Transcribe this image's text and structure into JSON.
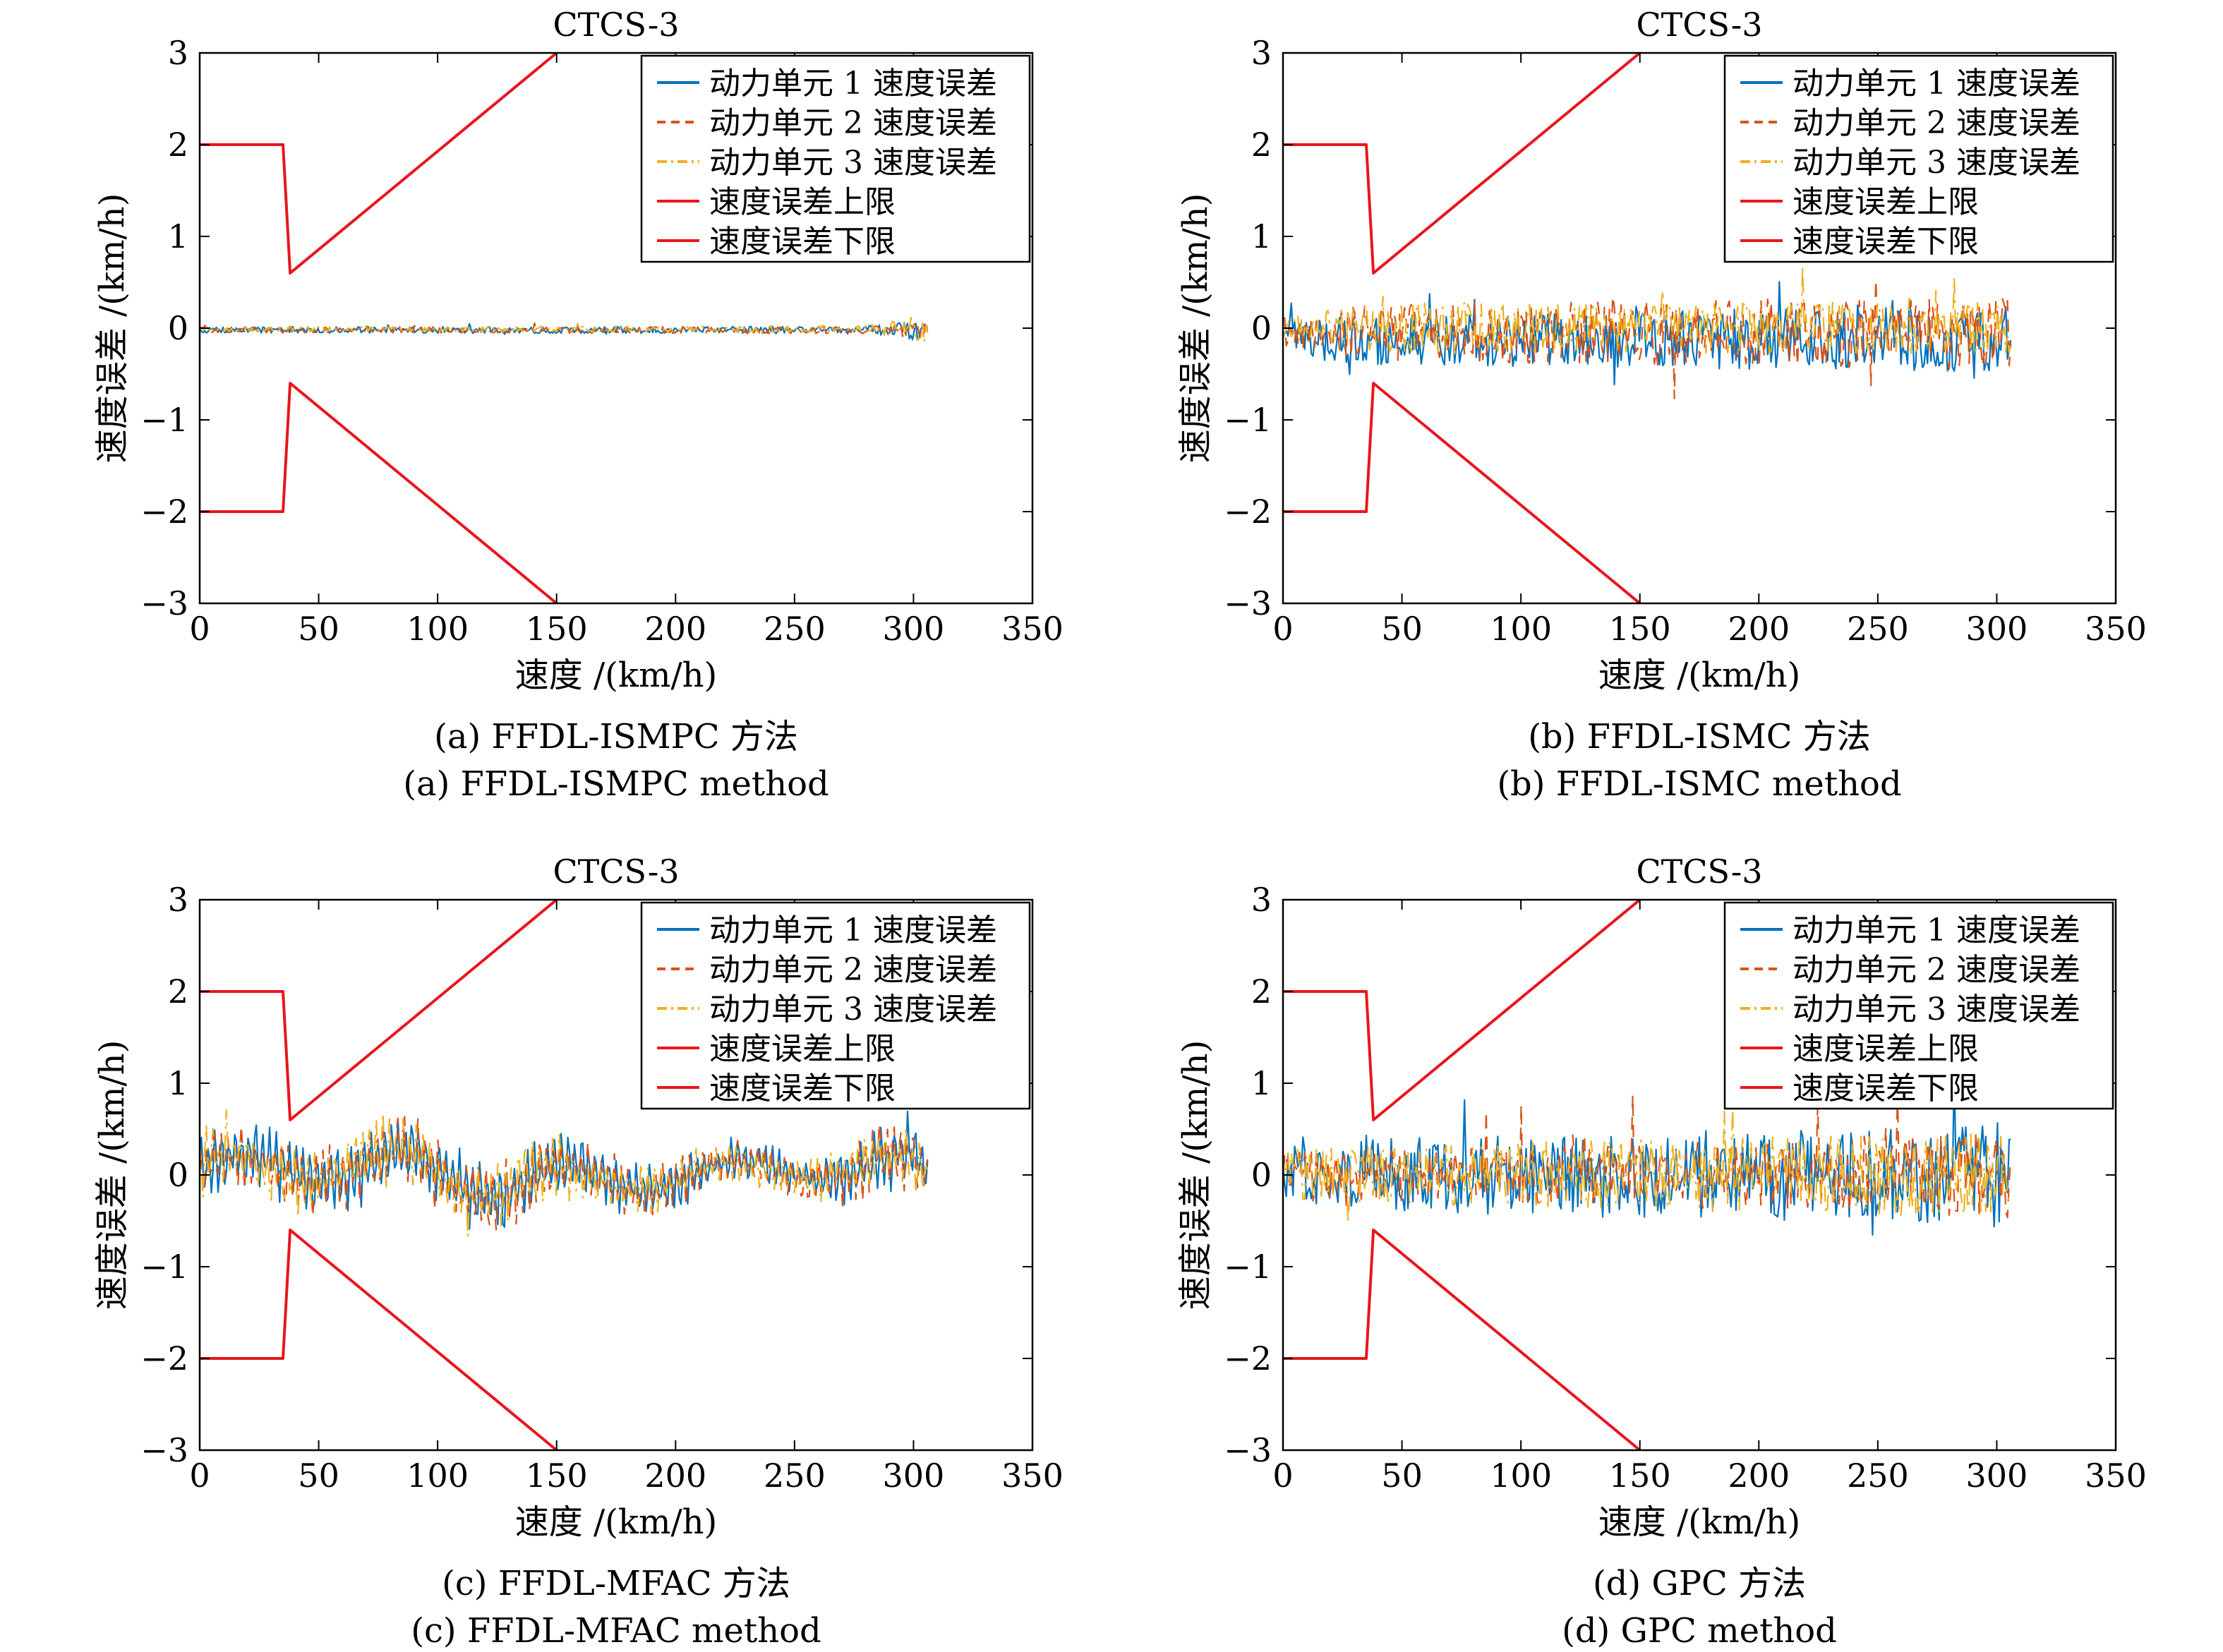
{
  "colors": {
    "unit1": "#0072BD",
    "unit2": "#D95319",
    "unit3": "#EDB120",
    "limits": "#E8161D",
    "axis": "#000000",
    "background": "#ffffff"
  },
  "chart_data": [
    {
      "type": "line",
      "panel": "a",
      "title": "CTCS-3",
      "xlabel": "速度 /(km/h)",
      "ylabel": "速度误差 /(km/h)",
      "xlim": [
        0,
        350
      ],
      "ylim": [
        -3,
        3
      ],
      "xticks": [
        "0",
        "50",
        "100",
        "150",
        "200",
        "250",
        "300",
        "350"
      ],
      "yticks": [
        "3",
        "2",
        "1",
        "0",
        "−1",
        "−2",
        "−3"
      ],
      "legend_position": "top-right",
      "caption_cn": "(a) FFDL-ISMPC 方法",
      "caption_en": "(a) FFDL-ISMPC method",
      "series": [
        {
          "name": "动力单元 1 速度误差",
          "style": "solid",
          "color": "#0072BD",
          "x_end": 306,
          "amp_profile": [
            [
              0,
              0.04
            ],
            [
              280,
              0.05
            ],
            [
              306,
              0.16
            ]
          ],
          "bias": -0.02
        },
        {
          "name": "动力单元 2 速度误差",
          "style": "dashed",
          "color": "#D95319",
          "x_end": 306,
          "amp_profile": [
            [
              0,
              0.04
            ],
            [
              280,
              0.05
            ],
            [
              306,
              0.14
            ]
          ],
          "bias": -0.02
        },
        {
          "name": "动力单元 3 速度误差",
          "style": "dashdot",
          "color": "#EDB120",
          "x_end": 306,
          "amp_profile": [
            [
              0,
              0.03
            ],
            [
              280,
              0.05
            ],
            [
              306,
              0.2
            ]
          ],
          "bias": -0.01
        },
        {
          "name": "速度误差上限",
          "style": "solid",
          "color": "#E8161D",
          "points": [
            [
              0,
              2
            ],
            [
              35,
              2
            ],
            [
              38,
              0.6
            ],
            [
              150,
              3
            ]
          ]
        },
        {
          "name": "速度误差下限",
          "style": "solid",
          "color": "#E8161D",
          "points": [
            [
              0,
              -2
            ],
            [
              35,
              -2
            ],
            [
              38,
              -0.6
            ],
            [
              150,
              -3
            ]
          ]
        }
      ]
    },
    {
      "type": "line",
      "panel": "b",
      "title": "CTCS-3",
      "xlabel": "速度 /(km/h)",
      "ylabel": "速度误差 /(km/h)",
      "xlim": [
        0,
        350
      ],
      "ylim": [
        -3,
        3
      ],
      "xticks": [
        "0",
        "50",
        "100",
        "150",
        "200",
        "250",
        "300",
        "350"
      ],
      "yticks": [
        "3",
        "2",
        "1",
        "0",
        "−1",
        "−2",
        "−3"
      ],
      "legend_position": "top-right",
      "caption_cn": "(b) FFDL-ISMC 方法",
      "caption_en": "(b) FFDL-ISMC method",
      "series": [
        {
          "name": "动力单元 1 速度误差",
          "style": "solid",
          "color": "#0072BD",
          "x_end": 306,
          "amp_profile": [
            [
              0,
              0.25
            ],
            [
              40,
              0.35
            ],
            [
              306,
              0.45
            ]
          ],
          "bias": -0.12
        },
        {
          "name": "动力单元 2 速度误差",
          "style": "dashed",
          "color": "#D95319",
          "x_end": 306,
          "amp_profile": [
            [
              0,
              0.2
            ],
            [
              40,
              0.4
            ],
            [
              306,
              0.5
            ]
          ],
          "bias": -0.05
        },
        {
          "name": "动力单元 3 速度误差",
          "style": "dashdot",
          "color": "#EDB120",
          "x_end": 306,
          "amp_profile": [
            [
              0,
              0.15
            ],
            [
              40,
              0.35
            ],
            [
              306,
              0.35
            ]
          ],
          "bias": 0.0
        },
        {
          "name": "速度误差上限",
          "style": "solid",
          "color": "#E8161D",
          "points": [
            [
              0,
              2
            ],
            [
              35,
              2
            ],
            [
              38,
              0.6
            ],
            [
              150,
              3
            ]
          ]
        },
        {
          "name": "速度误差下限",
          "style": "solid",
          "color": "#E8161D",
          "points": [
            [
              0,
              -2
            ],
            [
              35,
              -2
            ],
            [
              38,
              -0.6
            ],
            [
              150,
              -3
            ]
          ]
        }
      ]
    },
    {
      "type": "line",
      "panel": "c",
      "title": "CTCS-3",
      "xlabel": "速度 /(km/h)",
      "ylabel": "速度误差 /(km/h)",
      "xlim": [
        0,
        350
      ],
      "ylim": [
        -3,
        3
      ],
      "xticks": [
        "0",
        "50",
        "100",
        "150",
        "200",
        "250",
        "300",
        "350"
      ],
      "yticks": [
        "3",
        "2",
        "1",
        "0",
        "−1",
        "−2",
        "−3"
      ],
      "legend_position": "top-right",
      "caption_cn": "(c) FFDL-MFAC 方法",
      "caption_en": "(c) FFDL-MFAC method",
      "series": [
        {
          "name": "动力单元 1 速度误差",
          "style": "solid",
          "color": "#0072BD",
          "x_end": 306,
          "amp_profile": [
            [
              0,
              0.7
            ],
            [
              60,
              0.7
            ],
            [
              120,
              0.8
            ],
            [
              180,
              0.6
            ],
            [
              250,
              0.4
            ],
            [
              300,
              0.9
            ],
            [
              306,
              0.4
            ]
          ],
          "bias": 0.0
        },
        {
          "name": "动力单元 2 速度误差",
          "style": "dashed",
          "color": "#D95319",
          "x_end": 306,
          "amp_profile": [
            [
              0,
              0.7
            ],
            [
              60,
              0.7
            ],
            [
              120,
              0.8
            ],
            [
              180,
              0.6
            ],
            [
              250,
              0.4
            ],
            [
              300,
              0.9
            ],
            [
              306,
              0.4
            ]
          ],
          "bias": 0.0
        },
        {
          "name": "动力单元 3 速度误差",
          "style": "dashdot",
          "color": "#EDB120",
          "x_end": 306,
          "amp_profile": [
            [
              0,
              0.8
            ],
            [
              60,
              0.7
            ],
            [
              120,
              0.8
            ],
            [
              180,
              0.5
            ],
            [
              250,
              0.4
            ],
            [
              300,
              0.8
            ],
            [
              306,
              0.4
            ]
          ],
          "bias": 0.0
        },
        {
          "name": "速度误差上限",
          "style": "solid",
          "color": "#E8161D",
          "points": [
            [
              0,
              2
            ],
            [
              35,
              2
            ],
            [
              38,
              0.6
            ],
            [
              150,
              3
            ]
          ]
        },
        {
          "name": "速度误差下限",
          "style": "solid",
          "color": "#E8161D",
          "points": [
            [
              0,
              -2
            ],
            [
              35,
              -2
            ],
            [
              38,
              -0.6
            ],
            [
              150,
              -3
            ]
          ]
        }
      ]
    },
    {
      "type": "line",
      "panel": "d",
      "title": "CTCS-3",
      "xlabel": "速度 /(km/h)",
      "ylabel": "速度误差 /(km/h)",
      "xlim": [
        0,
        350
      ],
      "ylim": [
        -3,
        3
      ],
      "xticks": [
        "0",
        "50",
        "100",
        "150",
        "200",
        "250",
        "300",
        "350"
      ],
      "yticks": [
        "3",
        "2",
        "1",
        "0",
        "−1",
        "−2",
        "−3"
      ],
      "legend_position": "top-right",
      "caption_cn": "(d) GPC 方法",
      "caption_en": "(d) GPC method",
      "series": [
        {
          "name": "动力单元 1 速度误差",
          "style": "solid",
          "color": "#0072BD",
          "x_end": 306,
          "amp_profile": [
            [
              0,
              0.45
            ],
            [
              100,
              0.55
            ],
            [
              250,
              0.65
            ],
            [
              306,
              0.75
            ]
          ],
          "bias": 0.0
        },
        {
          "name": "动力单元 2 速度误差",
          "style": "dashed",
          "color": "#D95319",
          "x_end": 306,
          "amp_profile": [
            [
              0,
              0.3
            ],
            [
              100,
              0.4
            ],
            [
              250,
              0.5
            ],
            [
              306,
              0.6
            ]
          ],
          "bias": 0.0
        },
        {
          "name": "动力单元 3 速度误差",
          "style": "dashdot",
          "color": "#EDB120",
          "x_end": 306,
          "amp_profile": [
            [
              0,
              0.35
            ],
            [
              100,
              0.45
            ],
            [
              250,
              0.55
            ],
            [
              306,
              0.65
            ]
          ],
          "bias": 0.0
        },
        {
          "name": "速度误差上限",
          "style": "solid",
          "color": "#E8161D",
          "points": [
            [
              0,
              2
            ],
            [
              35,
              2
            ],
            [
              38,
              0.6
            ],
            [
              150,
              3
            ]
          ]
        },
        {
          "name": "速度误差下限",
          "style": "solid",
          "color": "#E8161D",
          "points": [
            [
              0,
              -2
            ],
            [
              35,
              -2
            ],
            [
              38,
              -0.6
            ],
            [
              150,
              -3
            ]
          ]
        }
      ]
    }
  ]
}
